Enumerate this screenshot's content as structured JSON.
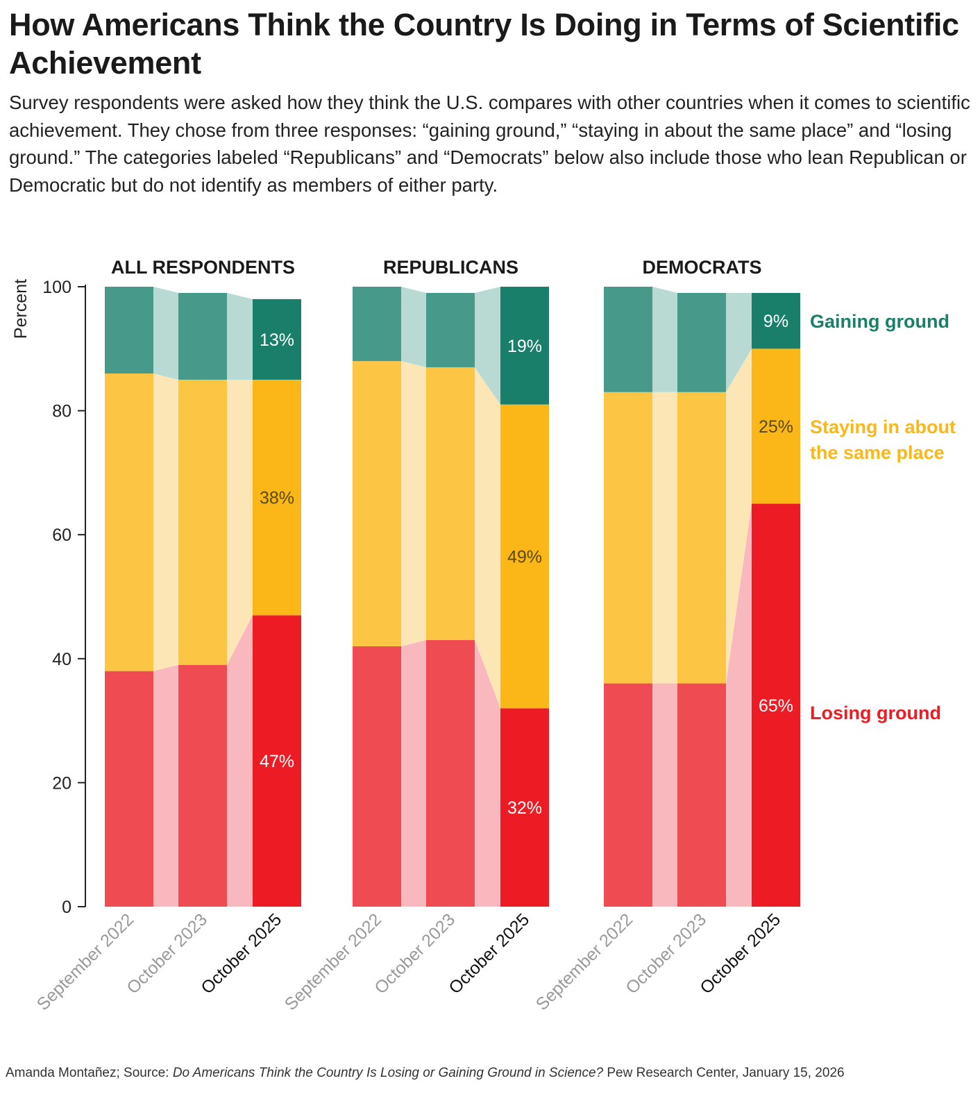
{
  "title": "How Americans Think the Country Is Doing in Terms of Scientific Achievement",
  "subtitle": "Survey respondents were asked how they think the U.S. compares with other countries when it comes to scientific achievement. They chose from three responses: “gaining ground,” “staying in about the same place” and “losing ground.” The categories labeled “Republicans” and “Democrats” below also include those who lean Republican or Democratic but do not identify as members of either party.",
  "footer": {
    "credit": "Amanda Montañez; Source: ",
    "source_title": "Do Americans Think the Country Is Losing or Gaining Ground in Science?",
    "source_rest": " Pew Research Center, January 15, 2026"
  },
  "colors": {
    "gaining": [
      "#479a8a",
      "#1a7f6a",
      "#b9d9d3"
    ],
    "staying": [
      "#fdc544",
      "#fbb718",
      "#fde6b5"
    ],
    "losing": [
      "#ef4b52",
      "#ed1c24",
      "#f9b8bd"
    ],
    "gaining_label": "#1a7f6a",
    "staying_label": "#fbb718",
    "losing_label": "#ed1c24"
  },
  "chart_data": {
    "type": "stacked-bar",
    "ylabel": "Percent",
    "ylim": [
      0,
      100
    ],
    "yticks": [
      0,
      20,
      40,
      60,
      80,
      100
    ],
    "categories": [
      "September 2022",
      "October 2023",
      "October 2025"
    ],
    "legend": [
      "Gaining ground",
      "Staying in about the same place",
      "Losing ground"
    ],
    "panels": [
      {
        "title": "ALL RESPONDENTS",
        "series": [
          {
            "name": "Losing ground",
            "values": [
              38,
              39,
              47
            ]
          },
          {
            "name": "Staying in about the same place",
            "values": [
              48,
              46,
              38
            ]
          },
          {
            "name": "Gaining ground",
            "values": [
              14,
              14,
              13
            ]
          }
        ]
      },
      {
        "title": "REPUBLICANS",
        "series": [
          {
            "name": "Losing ground",
            "values": [
              42,
              43,
              32
            ]
          },
          {
            "name": "Staying in about the same place",
            "values": [
              46,
              44,
              49
            ]
          },
          {
            "name": "Gaining ground",
            "values": [
              12,
              12,
              19
            ]
          }
        ]
      },
      {
        "title": "DEMOCRATS",
        "series": [
          {
            "name": "Losing ground",
            "values": [
              36,
              36,
              65
            ]
          },
          {
            "name": "Staying in about the same place",
            "values": [
              47,
              47,
              25
            ]
          },
          {
            "name": "Gaining ground",
            "values": [
              17,
              16,
              9
            ]
          }
        ]
      }
    ],
    "data_labels": "latest period only, shown as percent"
  }
}
